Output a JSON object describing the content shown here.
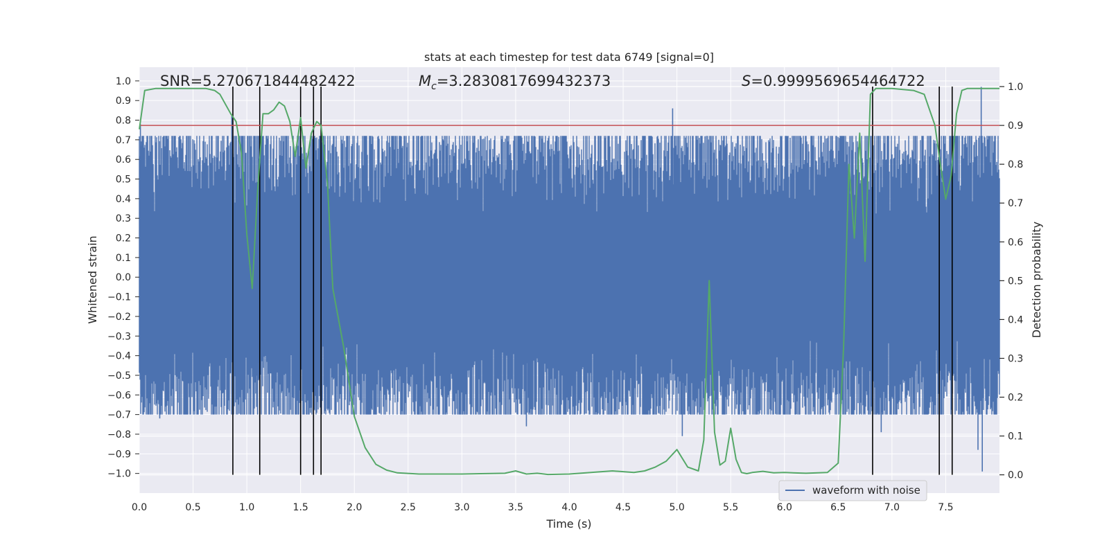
{
  "chart_data": {
    "type": "line",
    "title": "stats at each timestep for test data 6749 [signal=0]",
    "xlabel": "Time (s)",
    "ylabel": "Whitened strain",
    "y2label": "Detection probability",
    "xlim": [
      0.0,
      8.0
    ],
    "ylim": [
      -1.1,
      1.07
    ],
    "y2lim": [
      -0.047,
      1.05
    ],
    "xticks": [
      "0.0",
      "0.5",
      "1.0",
      "1.5",
      "2.0",
      "2.5",
      "3.0",
      "3.5",
      "4.0",
      "4.5",
      "5.0",
      "5.5",
      "6.0",
      "6.5",
      "7.0",
      "7.5"
    ],
    "yticks": [
      "1.0",
      "0.9",
      "0.8",
      "0.7",
      "0.6",
      "0.5",
      "0.4",
      "0.3",
      "0.2",
      "0.1",
      "0.0",
      "−0.1",
      "−0.2",
      "−0.3",
      "−0.4",
      "−0.5",
      "−0.6",
      "−0.7",
      "−0.8",
      "−0.9",
      "−1.0"
    ],
    "y2ticks": [
      "1.0",
      "0.9",
      "0.8",
      "0.7",
      "0.6",
      "0.5",
      "0.4",
      "0.3",
      "0.2",
      "0.1",
      "0.0"
    ],
    "annotations": {
      "snr": "SNR=5.270671844482422",
      "mc_symbol": "M",
      "mc_sub": "c",
      "mc_value": "=3.2830817699432373",
      "s_symbol": "S",
      "s_value": "=0.9999569654464722"
    },
    "legend": {
      "label": "waveform with noise",
      "position": "lower-right"
    },
    "threshold": 0.9,
    "vlines": [
      0.87,
      1.12,
      1.5,
      1.62,
      1.69,
      6.82,
      7.44,
      7.56
    ],
    "waveform": {
      "name": "waveform with noise",
      "amplitude_typical": 0.38,
      "t_start": 0.0,
      "t_end": 8.0
    },
    "waveform_peaks": [
      {
        "t": 0.01,
        "v": 0.78
      },
      {
        "t": 0.26,
        "v": 0.63
      },
      {
        "t": 0.86,
        "v": 0.82
      },
      {
        "t": 1.15,
        "v": 0.57
      },
      {
        "t": 1.62,
        "v": 0.77
      },
      {
        "t": 4.96,
        "v": 0.86
      },
      {
        "t": 7.83,
        "v": 0.97
      },
      {
        "t": 0.19,
        "v": -0.72
      },
      {
        "t": 1.1,
        "v": -0.7
      },
      {
        "t": 3.6,
        "v": -0.76
      },
      {
        "t": 5.05,
        "v": -0.81
      },
      {
        "t": 6.9,
        "v": -0.79
      },
      {
        "t": 7.8,
        "v": -0.88
      },
      {
        "t": 7.84,
        "v": -0.99
      }
    ],
    "probability": {
      "color": "#55a868",
      "t": [
        0.0,
        0.05,
        0.15,
        0.3,
        0.5,
        0.62,
        0.7,
        0.75,
        0.85,
        0.9,
        0.95,
        1.0,
        1.05,
        1.1,
        1.15,
        1.2,
        1.25,
        1.3,
        1.35,
        1.4,
        1.45,
        1.5,
        1.55,
        1.6,
        1.65,
        1.69,
        1.75,
        1.8,
        1.9,
        2.0,
        2.1,
        2.2,
        2.3,
        2.4,
        2.6,
        3.0,
        3.4,
        3.5,
        3.6,
        3.7,
        3.8,
        4.0,
        4.2,
        4.4,
        4.6,
        4.7,
        4.8,
        4.9,
        5.0,
        5.1,
        5.2,
        5.25,
        5.3,
        5.35,
        5.4,
        5.45,
        5.5,
        5.55,
        5.6,
        5.65,
        5.7,
        5.8,
        5.9,
        6.0,
        6.2,
        6.4,
        6.5,
        6.55,
        6.6,
        6.65,
        6.7,
        6.75,
        6.8,
        6.85,
        6.9,
        7.0,
        7.2,
        7.3,
        7.4,
        7.45,
        7.5,
        7.55,
        7.6,
        7.65,
        7.7,
        7.8,
        8.0
      ],
      "p": [
        0.89,
        0.99,
        0.995,
        0.995,
        0.995,
        0.995,
        0.99,
        0.98,
        0.93,
        0.91,
        0.83,
        0.62,
        0.48,
        0.73,
        0.93,
        0.93,
        0.94,
        0.96,
        0.95,
        0.91,
        0.82,
        0.92,
        0.79,
        0.88,
        0.91,
        0.9,
        0.75,
        0.48,
        0.33,
        0.15,
        0.07,
        0.027,
        0.012,
        0.005,
        0.002,
        0.002,
        0.004,
        0.01,
        0.002,
        0.004,
        0.001,
        0.002,
        0.006,
        0.01,
        0.006,
        0.01,
        0.02,
        0.035,
        0.065,
        0.02,
        0.01,
        0.09,
        0.5,
        0.11,
        0.025,
        0.035,
        0.12,
        0.04,
        0.006,
        0.003,
        0.006,
        0.009,
        0.005,
        0.006,
        0.004,
        0.006,
        0.03,
        0.33,
        0.8,
        0.61,
        0.88,
        0.55,
        0.98,
        0.995,
        0.995,
        0.995,
        0.99,
        0.98,
        0.9,
        0.8,
        0.71,
        0.77,
        0.93,
        0.99,
        0.995,
        0.995,
        0.995
      ]
    },
    "colors": {
      "waveform": "#4c72b0",
      "probability": "#55a868",
      "threshold": "#c44e52",
      "vlines": "#000000",
      "axes_bg": "#eaeaf2",
      "grid": "#ffffff"
    }
  }
}
